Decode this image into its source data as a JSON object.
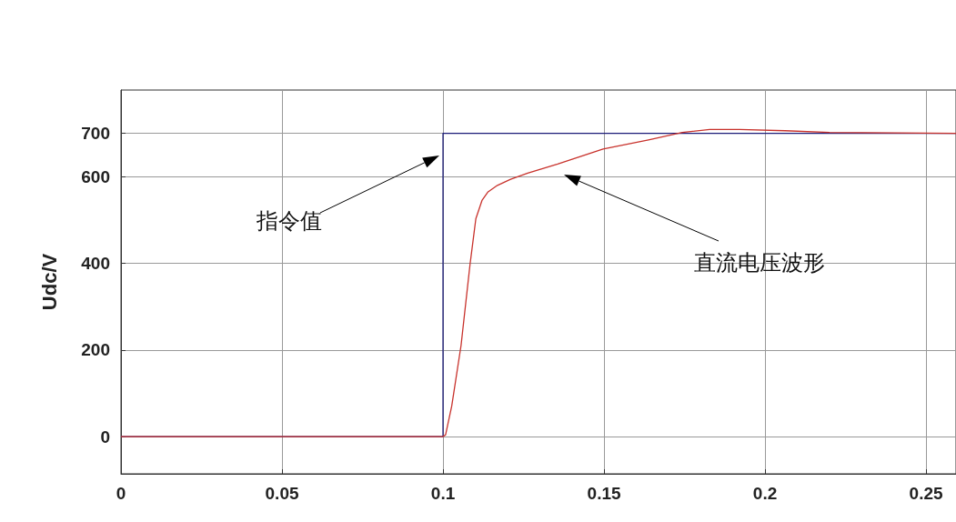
{
  "chart_data": {
    "type": "line",
    "ylabel": "Udc/V",
    "xlim": [
      0,
      0.2593
    ],
    "xticks": [
      0,
      0.05,
      0.1,
      0.15,
      0.2,
      0.25
    ],
    "ylim": [
      -86,
      800
    ],
    "yticks": [
      0,
      200,
      400,
      600,
      700
    ],
    "grid": true,
    "marker": "none",
    "line_style": "solid",
    "series": [
      {
        "color": "#1c1c78",
        "x": [
          0,
          0.1,
          0.1,
          0.2593
        ],
        "values": [
          0,
          0,
          700,
          700
        ]
      },
      {
        "color": "#c8322c",
        "x": [
          0,
          0.1,
          0.1008,
          0.1027,
          0.1056,
          0.1084,
          0.1102,
          0.1121,
          0.114,
          0.1169,
          0.121,
          0.1263,
          0.1356,
          0.1497,
          0.1638,
          0.1743,
          0.1828,
          0.1921,
          0.2062,
          0.22,
          0.2593
        ],
        "values": [
          0,
          0,
          4,
          70,
          210,
          398,
          503,
          545,
          565,
          580,
          594,
          608,
          629,
          664,
          685,
          702,
          709,
          709,
          706,
          702,
          700
        ]
      }
    ],
    "annotations": [
      "指令值",
      "直流电压波形"
    ]
  }
}
